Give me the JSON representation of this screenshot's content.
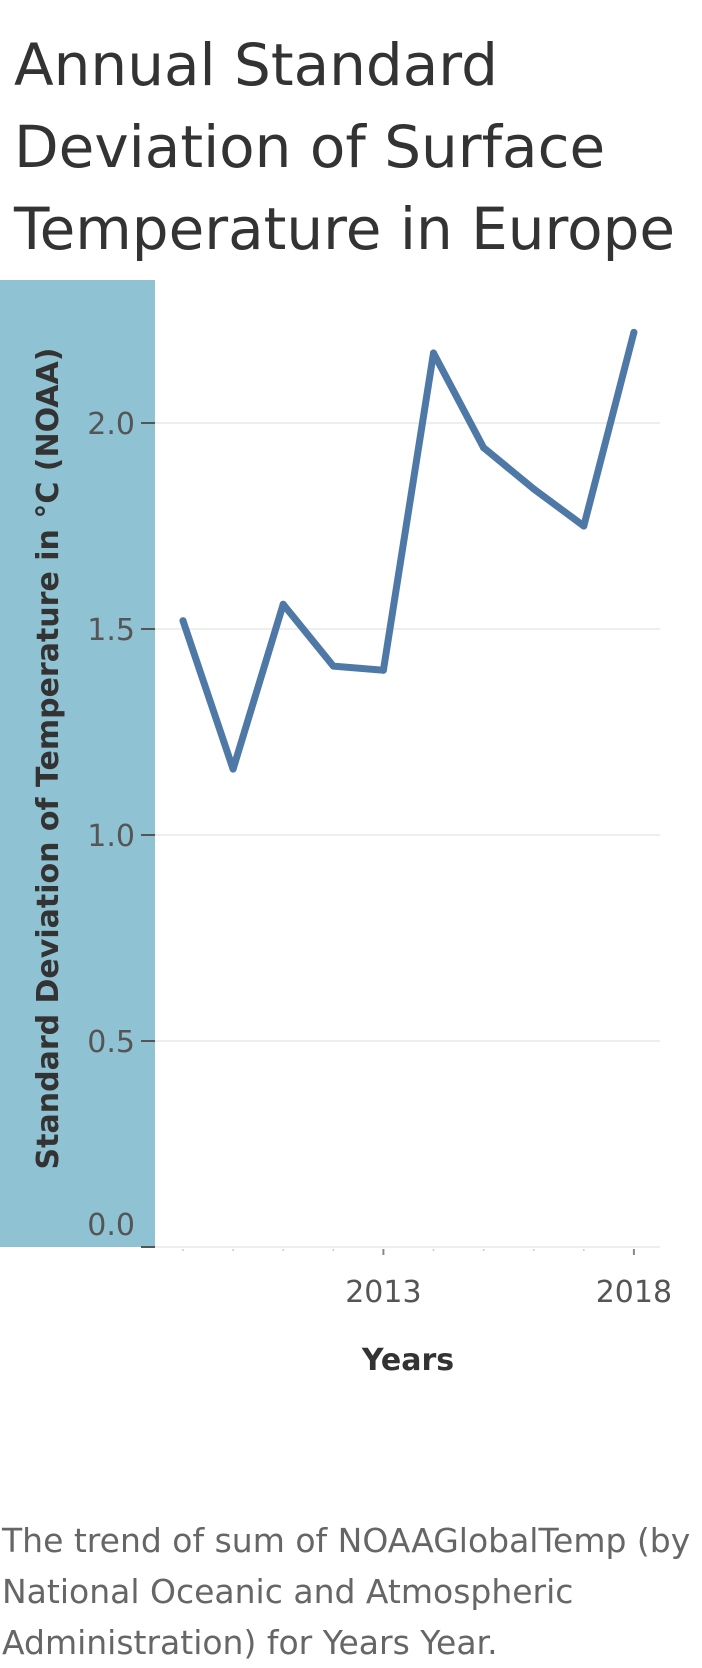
{
  "chart_data": {
    "type": "line",
    "title": "Annual Standard Deviation of Surface Temperature in Europe",
    "ylabel": "Standard Deviation of Temperature in °C (NOAA)",
    "xlabel": "Years",
    "caption": "The trend of sum of NOAAGlobalTemp (by National Oceanic and Atmospheric Administration) for Years Year.",
    "x": [
      2009,
      2010,
      2011,
      2012,
      2013,
      2014,
      2015,
      2016,
      2017,
      2018
    ],
    "series": [
      {
        "name": "Standard Deviation of Temperature in °C (NOAA)",
        "values": [
          1.52,
          1.16,
          1.56,
          1.41,
          1.4,
          2.17,
          1.94,
          1.84,
          1.75,
          2.22
        ]
      }
    ],
    "ylim": [
      0,
      2.3
    ],
    "yticks": [
      0,
      0.5,
      1.0,
      1.5,
      2.0
    ],
    "ytick_labels": [
      "0.0",
      "0.5",
      "1.0",
      "1.5",
      "2.0"
    ],
    "xticks": [
      2013,
      2018
    ],
    "xtick_labels": [
      "2013",
      "2018"
    ],
    "grid": true,
    "colors": {
      "line": "#4e79a7",
      "axis_band": "#8fc3d4",
      "grid": "#eeeeee"
    }
  }
}
